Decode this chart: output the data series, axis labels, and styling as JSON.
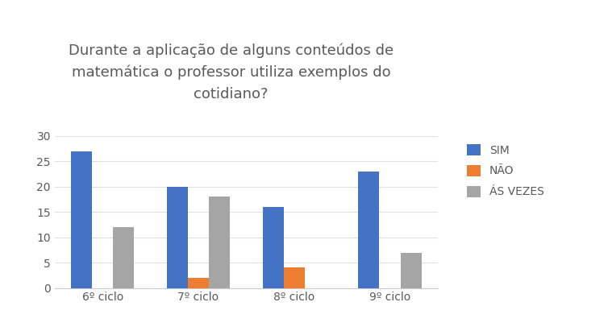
{
  "title": "Durante a aplicação de alguns conteúdos de\nmatemática o professor utiliza exemplos do\ncotidiano?",
  "categories": [
    "6º ciclo",
    "7º ciclo",
    "8º ciclo",
    "9º ciclo"
  ],
  "series": {
    "SIM": [
      27,
      20,
      16,
      23
    ],
    "NÃO": [
      0,
      2,
      4,
      0
    ],
    "ÁS VEZES": [
      12,
      18,
      0,
      7
    ]
  },
  "colors": {
    "SIM": "#4472C4",
    "NÃO": "#ED7D31",
    "ÁS VEZES": "#A5A5A5"
  },
  "ylim": [
    0,
    32
  ],
  "yticks": [
    0,
    5,
    10,
    15,
    20,
    25,
    30
  ],
  "bar_width": 0.22,
  "title_fontsize": 13,
  "tick_fontsize": 10,
  "legend_fontsize": 10,
  "title_color": "#595959",
  "tick_color": "#595959",
  "background_color": "#ffffff"
}
